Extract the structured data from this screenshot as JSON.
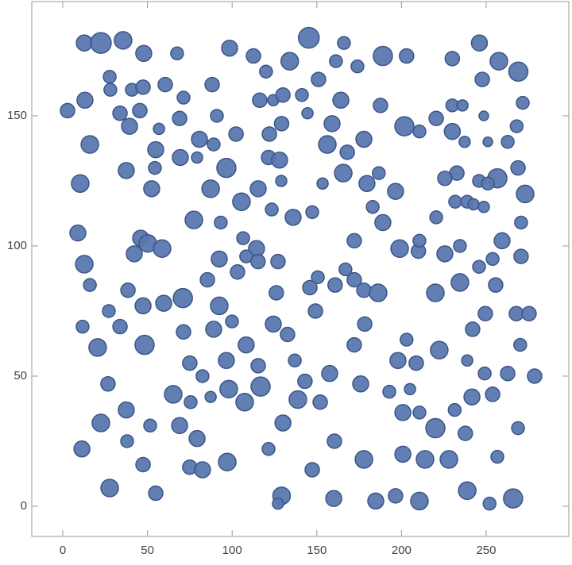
{
  "chart_data": {
    "type": "bubble",
    "color": "#5a78b0",
    "edge_color": "#3c5588",
    "xlim": [
      -18.3,
      298.8
    ],
    "ylim": [
      -11.6,
      193.9
    ],
    "xticks": [
      0,
      50,
      100,
      150,
      200,
      250
    ],
    "yticks": [
      0,
      50,
      100,
      150
    ],
    "x": [
      12.7,
      22.5,
      35.6,
      47.8,
      67.5,
      98.5,
      112.6,
      134,
      145.3,
      166,
      161.3,
      174,
      189,
      203,
      230,
      246,
      257.5,
      269,
      27.7,
      120,
      13.1,
      28.1,
      40.8,
      47.4,
      60.5,
      71.3,
      88.2,
      116.3,
      124.3,
      130,
      141.2,
      151,
      164.2,
      247.7,
      271.6,
      2.8,
      33.8,
      45.5,
      69,
      91,
      129.2,
      144.5,
      159,
      187.6,
      201.7,
      210.6,
      220.5,
      230,
      236,
      230,
      248.6,
      268,
      39.4,
      56.8,
      16,
      54.9,
      80.7,
      89.1,
      102.3,
      122,
      156.2,
      168,
      177.8,
      237.3,
      251,
      262.7,
      69.4,
      79.3,
      96.6,
      121.5,
      128,
      54.4,
      37.5,
      165.6,
      186.6,
      232.7,
      268.8,
      10.3,
      52.5,
      87.3,
      115.4,
      129,
      153.4,
      179.6,
      196.5,
      225.6,
      245.8,
      256.6,
      273,
      251,
      105.5,
      123.4,
      136,
      147.3,
      183,
      189,
      231.7,
      238.8,
      242.5,
      248.6,
      220.5,
      77.4,
      93.3,
      270.6,
      8.9,
      46,
      50.2,
      58.6,
      42.2,
      12.7,
      106.5,
      114.4,
      108.3,
      92.4,
      103.2,
      115.3,
      127.1,
      172.1,
      198.9,
      210,
      210.6,
      225.6,
      234.5,
      259.4,
      253.8,
      270.6,
      245.8,
      234.5,
      255.6,
      166.9,
      172.1,
      177.8,
      186.2,
      16,
      85.4,
      150.6,
      145.9,
      160.8,
      38.5,
      126.1,
      220,
      47.4,
      59.6,
      70.9,
      92.4,
      27.2,
      149.2,
      249.5,
      267.8,
      275.3,
      11.7,
      33.8,
      89.1,
      99.9,
      71.3,
      124.3,
      132.7,
      178.3,
      242,
      108.3,
      172.1,
      203,
      270.1,
      20.6,
      48.3,
      222.3,
      96.6,
      137,
      197.9,
      208.7,
      238.8,
      75,
      82.5,
      115.4,
      157.6,
      249.1,
      262.7,
      278.6,
      26.7,
      175.9,
      143,
      65.2,
      87.3,
      98,
      116.8,
      192.8,
      205,
      241.6,
      253.8,
      107.4,
      138.8,
      152,
      75.5,
      37.5,
      200.8,
      210.6,
      231.4,
      22.5,
      51.6,
      69,
      130,
      220,
      268.8,
      38,
      79.3,
      160.4,
      237.7,
      11.3,
      121.5,
      47.4,
      75,
      82.5,
      97.1,
      147.3,
      177.8,
      200.8,
      213.9,
      228,
      256.6,
      27.7,
      54.9,
      129.2,
      127.1,
      160,
      184.8,
      196.5,
      210.6,
      238.8,
      252,
      265.9
    ],
    "y": [
      178,
      178,
      179,
      174,
      174,
      176,
      173,
      171,
      180,
      178,
      171,
      169,
      173,
      173,
      172,
      178,
      171,
      167,
      165,
      167,
      156,
      160,
      160,
      161,
      162,
      157,
      162,
      156,
      156,
      158,
      158,
      164,
      156,
      164,
      155,
      152,
      151,
      152,
      149,
      150,
      147,
      151,
      147,
      154,
      146,
      144,
      149,
      154,
      154,
      144,
      150,
      146,
      146,
      145,
      139,
      137,
      141,
      139,
      143,
      143,
      139,
      136,
      141,
      140,
      140,
      140,
      134,
      134,
      130,
      134,
      133,
      130,
      129,
      128,
      128,
      128,
      130,
      124,
      122,
      122,
      122,
      125,
      124,
      124,
      121,
      126,
      125,
      126,
      120,
      124,
      117,
      114,
      111,
      113,
      115,
      109,
      117,
      117,
      116,
      115,
      111,
      110,
      109,
      109,
      105,
      103,
      101,
      99,
      97,
      93,
      103,
      99,
      96,
      95,
      90,
      94,
      94,
      102,
      99,
      98,
      102,
      97,
      100,
      102,
      95,
      96,
      92,
      86,
      85,
      91,
      87,
      83,
      82,
      85,
      87,
      88,
      84,
      85,
      83,
      82,
      82,
      77,
      78,
      80,
      77,
      75,
      75,
      74,
      74,
      74,
      69,
      69,
      68,
      71,
      67,
      70,
      66,
      70,
      68,
      62,
      62,
      64,
      62,
      61,
      62,
      60,
      56,
      56,
      56,
      55,
      56,
      55,
      50,
      54,
      51,
      51,
      51,
      50,
      47,
      47,
      48,
      43,
      42,
      45,
      46,
      44,
      45,
      42,
      43,
      40,
      41,
      40,
      40,
      37,
      36,
      36,
      37,
      32,
      31,
      31,
      32,
      30,
      30,
      25,
      26,
      25,
      28,
      22,
      22,
      16,
      15,
      14,
      17,
      14,
      18,
      20,
      18,
      18,
      19,
      7,
      5,
      4,
      1,
      3,
      2,
      4,
      2,
      6,
      1,
      3
    ],
    "sizes": [
      10,
      13,
      11,
      10,
      8,
      10,
      9,
      11,
      13,
      8,
      8,
      8,
      12,
      9,
      9,
      10,
      11,
      12,
      8,
      8,
      10,
      8,
      8,
      9,
      9,
      8,
      9,
      9,
      7,
      9,
      8,
      9,
      10,
      9,
      8,
      9,
      9,
      9,
      9,
      8,
      9,
      7,
      10,
      9,
      12,
      8,
      9,
      8,
      7,
      10,
      6,
      8,
      10,
      7,
      11,
      10,
      10,
      8,
      9,
      9,
      11,
      9,
      10,
      7,
      6,
      8,
      10,
      7,
      12,
      9,
      10,
      8,
      10,
      11,
      8,
      9,
      9,
      11,
      10,
      11,
      10,
      7,
      7,
      10,
      10,
      9,
      8,
      12,
      11,
      8,
      11,
      8,
      10,
      8,
      8,
      10,
      8,
      8,
      7,
      7,
      8,
      11,
      8,
      8,
      10,
      10,
      11,
      11,
      10,
      11,
      8,
      10,
      8,
      10,
      9,
      9,
      9,
      9,
      11,
      9,
      8,
      10,
      8,
      10,
      8,
      9,
      8,
      11,
      9,
      8,
      9,
      9,
      11,
      8,
      9,
      8,
      9,
      9,
      9,
      9,
      11,
      10,
      10,
      12,
      11,
      8,
      9,
      9,
      9,
      9,
      8,
      9,
      10,
      8,
      9,
      10,
      9,
      9,
      9,
      10,
      9,
      8,
      8,
      11,
      12,
      11,
      10,
      8,
      10,
      9,
      7,
      9,
      8,
      9,
      10,
      8,
      9,
      9,
      9,
      10,
      9,
      11,
      7,
      11,
      12,
      8,
      7,
      10,
      9,
      11,
      11,
      9,
      8,
      10,
      10,
      8,
      8,
      11,
      8,
      10,
      10,
      12,
      8,
      8,
      10,
      9,
      9,
      10,
      8,
      9,
      9,
      10,
      11,
      9,
      11,
      10,
      11,
      11,
      8,
      11,
      9,
      11,
      7,
      10,
      10,
      9,
      11,
      11,
      8,
      12
    ]
  }
}
